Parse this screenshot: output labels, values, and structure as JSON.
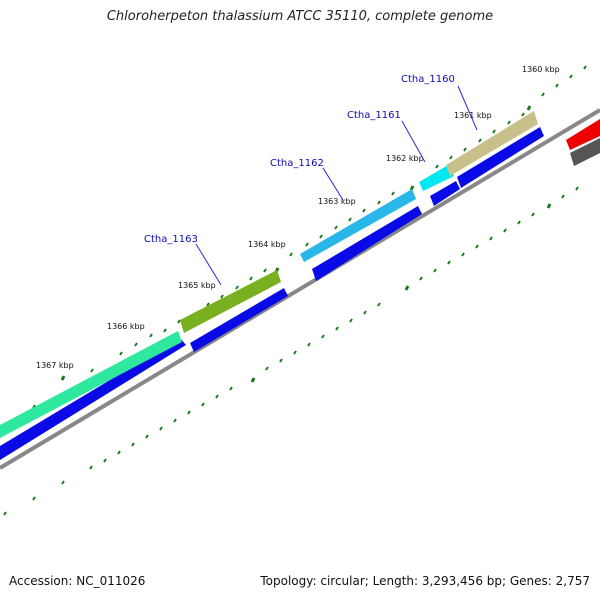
{
  "title": "Chloroherpeton thalassium ATCC 35110, complete genome",
  "footer": {
    "accession": "Accession: NC_011026",
    "summary": "Topology: circular; Length: 3,293,456 bp; Genes: 2,757"
  },
  "ticks": [
    "1360 kbp",
    "1361 kbp",
    "1362 kbp",
    "1363 kbp",
    "1364 kbp",
    "1365 kbp",
    "1366 kbp",
    "1367 kbp"
  ],
  "gene_labels": [
    "Ctha_1160",
    "Ctha_1161",
    "Ctha_1162",
    "Ctha_1163"
  ],
  "colors": {
    "track_blue": "#0a0ae6",
    "backbone": "#888888",
    "tick_green": "#1a7a1a",
    "gene_1160": "#c8c08a",
    "gene_1161": "#00e8f0",
    "gene_1162": "#29b6e8",
    "gene_1163": "#7ab020",
    "gene_main": "#2ee8a0",
    "red_feature": "#ee0000",
    "dark_feature": "#555555"
  }
}
